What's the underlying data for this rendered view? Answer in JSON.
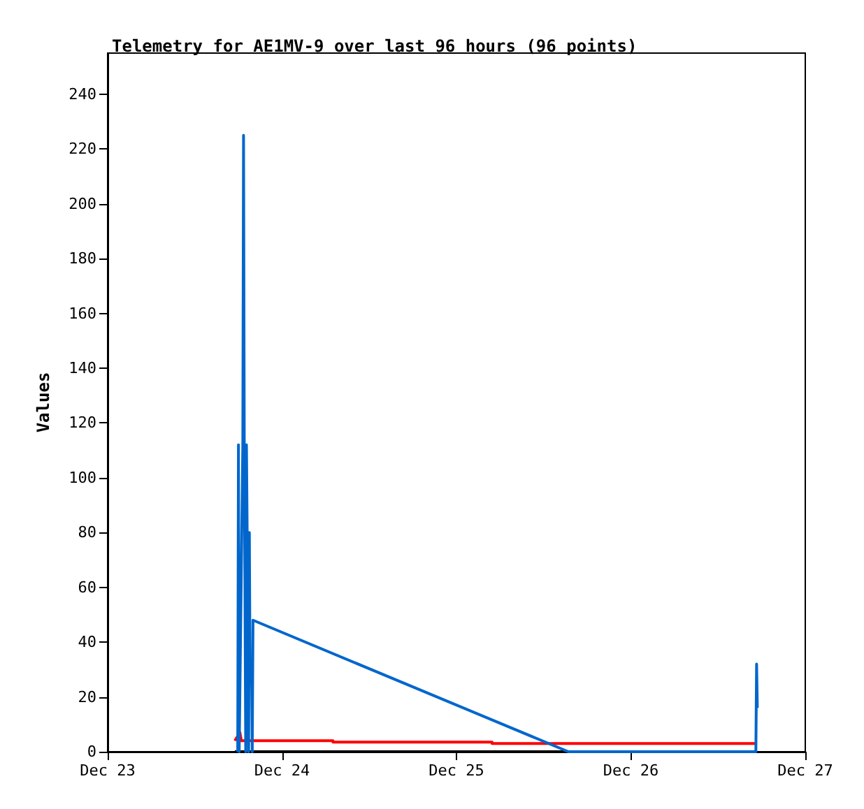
{
  "chart_data": {
    "type": "line",
    "title": "Telemetry for AE1MV-9 over last 96 hours (96 points)",
    "ylabel": "Values",
    "xlim": [
      "--12-23",
      "--12-27"
    ],
    "xticks": [
      {
        "value": "--12-23",
        "label": "Dec 23"
      },
      {
        "value": "--12-24",
        "label": "Dec 24"
      },
      {
        "value": "--12-25",
        "label": "Dec 25"
      },
      {
        "value": "--12-26",
        "label": "Dec 26"
      },
      {
        "value": "--12-27",
        "label": "Dec 27"
      }
    ],
    "ylim": [
      0,
      255
    ],
    "yticks": [
      0,
      20,
      40,
      60,
      80,
      100,
      120,
      140,
      160,
      180,
      200,
      220,
      240
    ],
    "grid": false,
    "marker": "none",
    "line_style": "solid",
    "series": [
      {
        "color": "#000000",
        "x": [
          "--12-23T17:30",
          "--12-26T17:18"
        ],
        "values": [
          0,
          0
        ]
      },
      {
        "color": "#ff0000",
        "x": [
          "--12-23T17:30",
          "--12-23T18:12",
          "--12-23T18:24",
          "--12-24T07:00",
          "--12-24T07:00",
          "--12-25T04:54",
          "--12-25T04:54",
          "--12-26T17:18"
        ],
        "values": [
          4,
          7,
          4,
          4,
          3.5,
          3.5,
          3,
          3
        ]
      },
      {
        "color": "#0066cc",
        "x": [
          "--12-23T17:54",
          "--12-23T18:00",
          "--12-23T18:06",
          "--12-23T18:36",
          "--12-23T18:42",
          "--12-23T18:48",
          "--12-23T19:00",
          "--12-23T19:06",
          "--12-23T19:12",
          "--12-23T19:24",
          "--12-23T19:30",
          "--12-23T19:36",
          "--12-23T19:48",
          "--12-23T19:54",
          "--12-23T20:00",
          "--12-25T15:24",
          "--12-26T17:12",
          "--12-26T17:18",
          "--12-26T17:24"
        ],
        "values": [
          0,
          112,
          0,
          112,
          225,
          112,
          0,
          112,
          80,
          0,
          80,
          25,
          32,
          0,
          48,
          0,
          0,
          32,
          16
        ]
      }
    ]
  }
}
